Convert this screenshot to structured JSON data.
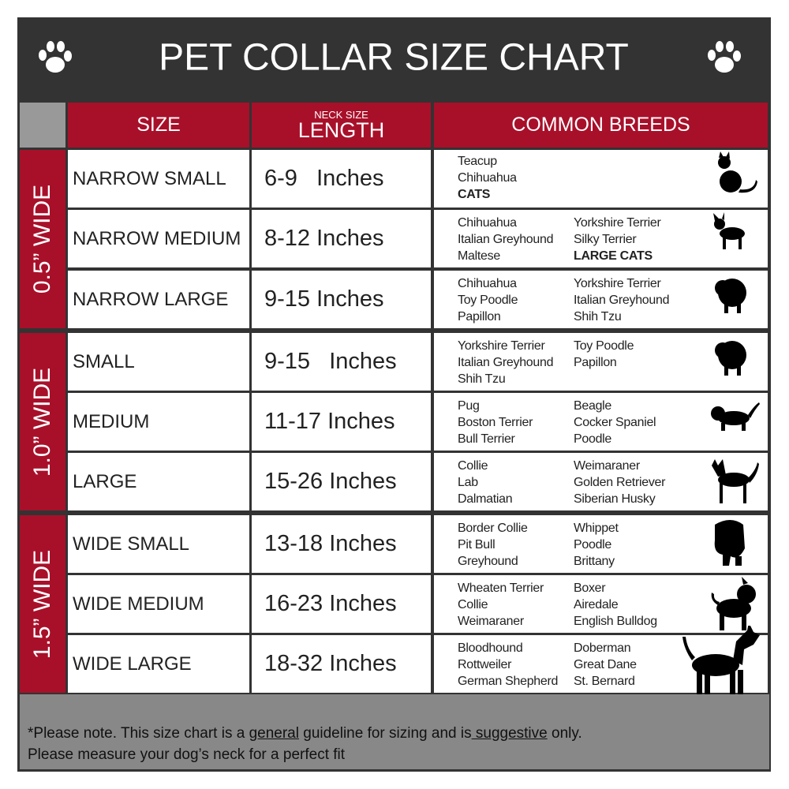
{
  "header": {
    "title": "PET COLLAR SIZE CHART"
  },
  "columns": {
    "size": "SIZE",
    "length_note": "NECK SIZE",
    "length": "LENGTH",
    "breeds": "COMMON BREEDS"
  },
  "groups": [
    {
      "label": "0.5” WIDE",
      "rows": [
        {
          "size": "NARROW SMALL",
          "length": "6-9   Inches",
          "breeds": [
            [
              {
                "text": "Teacup"
              },
              {
                "text": "Chihuahua"
              },
              {
                "text": "CATS",
                "bold": true
              }
            ],
            []
          ]
        },
        {
          "size": "NARROW MEDIUM",
          "length": "8-12 Inches",
          "breeds": [
            [
              {
                "text": "Chihuahua"
              },
              {
                "text": "Italian Greyhound"
              },
              {
                "text": "Maltese"
              }
            ],
            [
              {
                "text": "Yorkshire Terrier"
              },
              {
                "text": "Silky Terrier"
              },
              {
                "text": "LARGE CATS",
                "bold": true
              }
            ]
          ]
        },
        {
          "size": "NARROW LARGE",
          "length": "9-15 Inches",
          "breeds": [
            [
              {
                "text": "Chihuahua"
              },
              {
                "text": "Toy Poodle"
              },
              {
                "text": "Papillon"
              }
            ],
            [
              {
                "text": "Yorkshire Terrier"
              },
              {
                "text": "Italian Greyhound"
              },
              {
                "text": "Shih Tzu"
              }
            ]
          ]
        }
      ]
    },
    {
      "label": "1.0” WIDE",
      "rows": [
        {
          "size": "SMALL",
          "length": "9-15   Inches",
          "breeds": [
            [
              {
                "text": "Yorkshire Terrier"
              },
              {
                "text": "Italian Greyhound"
              },
              {
                "text": "Shih Tzu"
              }
            ],
            [
              {
                "text": "Toy Poodle"
              },
              {
                "text": "Papillon"
              }
            ]
          ]
        },
        {
          "size": "MEDIUM",
          "length": "11-17 Inches",
          "breeds": [
            [
              {
                "text": "Pug"
              },
              {
                "text": "Boston Terrier"
              },
              {
                "text": "Bull Terrier"
              }
            ],
            [
              {
                "text": "Beagle"
              },
              {
                "text": "Cocker Spaniel"
              },
              {
                "text": "Poodle"
              }
            ]
          ]
        },
        {
          "size": "LARGE",
          "length": "15-26 Inches",
          "breeds": [
            [
              {
                "text": "Collie"
              },
              {
                "text": "Lab"
              },
              {
                "text": "Dalmatian"
              }
            ],
            [
              {
                "text": "Weimaraner"
              },
              {
                "text": "Golden Retriever"
              },
              {
                "text": "Siberian Husky"
              }
            ]
          ]
        }
      ]
    },
    {
      "label": "1.5” WIDE",
      "rows": [
        {
          "size": "WIDE SMALL",
          "length": "13-18 Inches",
          "breeds": [
            [
              {
                "text": "Border Collie"
              },
              {
                "text": "Pit Bull"
              },
              {
                "text": "Greyhound"
              }
            ],
            [
              {
                "text": "Whippet"
              },
              {
                "text": "Poodle"
              },
              {
                "text": "Brittany"
              }
            ]
          ]
        },
        {
          "size": "WIDE MEDIUM",
          "length": "16-23 Inches",
          "breeds": [
            [
              {
                "text": "Wheaten Terrier"
              },
              {
                "text": "Collie"
              },
              {
                "text": "Weimaraner"
              }
            ],
            [
              {
                "text": "Boxer"
              },
              {
                "text": "Airedale"
              },
              {
                "text": "English Bulldog"
              }
            ]
          ]
        },
        {
          "size": "WIDE LARGE",
          "length": "18-32 Inches",
          "breeds": [
            [
              {
                "text": "Bloodhound"
              },
              {
                "text": "Rottweiler"
              },
              {
                "text": "German Shepherd"
              }
            ],
            [
              {
                "text": "Doberman"
              },
              {
                "text": "Great Dane"
              },
              {
                "text": "St. Bernard"
              }
            ]
          ]
        }
      ]
    }
  ],
  "footnote": {
    "line1": [
      {
        "text": "*Please note. This size chart is a "
      },
      {
        "text": "general",
        "underline": true
      },
      {
        "text": " guideline for sizing and is"
      },
      {
        "text": " suggestive",
        "underline": true
      },
      {
        "text": " only."
      }
    ],
    "line2": "Please measure your dog’s neck for a perfect fit"
  }
}
